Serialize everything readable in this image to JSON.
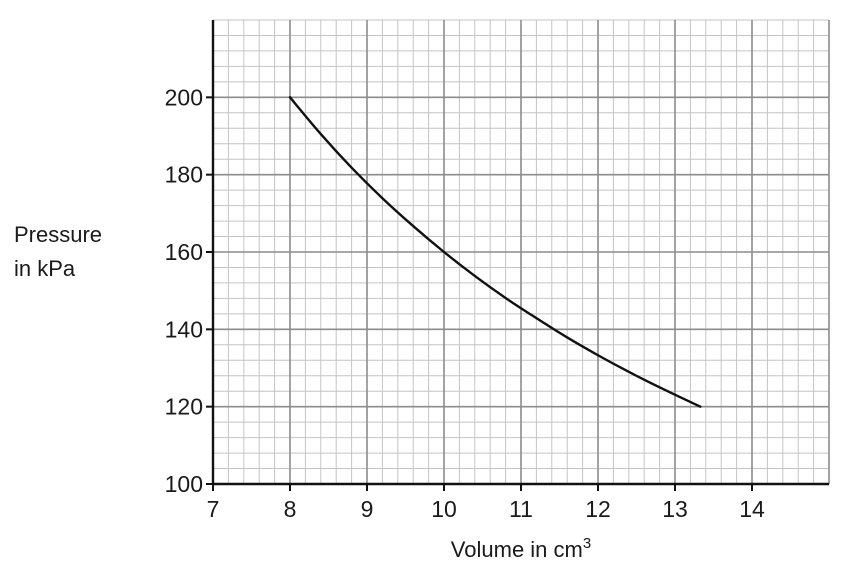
{
  "chart_data": {
    "type": "line",
    "title": "",
    "xlabel": "Volume in cm",
    "xlabel_superscript": "3",
    "ylabel_line1": "Pressure",
    "ylabel_line2": "in kPa",
    "xlim": [
      7,
      15
    ],
    "ylim": [
      100,
      220
    ],
    "x_ticks": [
      7,
      8,
      9,
      10,
      11,
      12,
      13,
      14
    ],
    "y_ticks": [
      100,
      120,
      140,
      160,
      180,
      200
    ],
    "x_minor_step": 0.2,
    "y_minor_step": 4,
    "grid": true,
    "series": [
      {
        "x": [
          8.0,
          8.4,
          8.8,
          9.2,
          9.6,
          10.0,
          10.4,
          10.8,
          11.2,
          11.6,
          12.0,
          12.4,
          12.8,
          13.33
        ],
        "y": [
          200,
          190.5,
          181.8,
          173.9,
          166.7,
          160.0,
          153.8,
          148.1,
          142.9,
          137.9,
          133.3,
          129.0,
          125.0,
          120.0
        ]
      }
    ],
    "colors": {
      "curve": "#111111",
      "major_grid": "#8c8c8c",
      "minor_grid": "#c4c4c4"
    }
  }
}
